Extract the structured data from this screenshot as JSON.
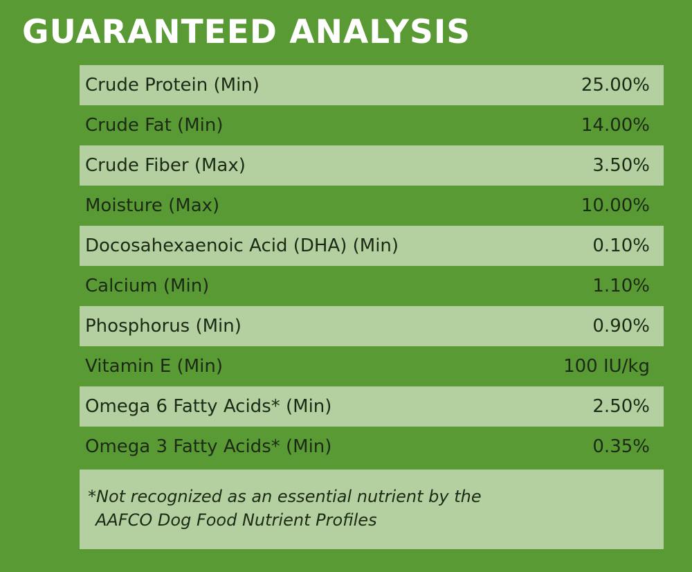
{
  "title": "GUARANTEED ANALYSIS",
  "rows": [
    {
      "label": "Crude Protein (Min)",
      "value": "25.00%"
    },
    {
      "label": "Crude Fat (Min)",
      "value": "14.00%"
    },
    {
      "label": "Crude Fiber (Max)",
      "value": "3.50%"
    },
    {
      "label": "Moisture (Max)",
      "value": "10.00%"
    },
    {
      "label": "Docosahexaenoic Acid (DHA) (Min)",
      "value": "0.10%"
    },
    {
      "label": "Calcium (Min)",
      "value": "1.10%"
    },
    {
      "label": "Phosphorus (Min)",
      "value": "0.90%"
    },
    {
      "label": "Vitamin E (Min)",
      "value": "100 IU/kg"
    },
    {
      "label": "Omega 6 Fatty Acids* (Min)",
      "value": "2.50%"
    },
    {
      "label": "Omega 3 Fatty Acids* (Min)",
      "value": "0.35%"
    }
  ],
  "footnote": {
    "line1": "*Not recognized as an essential nutrient by the",
    "line2": "AAFCO Dog Food Nutrient Profiles"
  },
  "colors": {
    "background": "#5a9a35",
    "row_shade": "#b5d0a0",
    "title": "#ffffff",
    "text": "#1b2a14"
  }
}
